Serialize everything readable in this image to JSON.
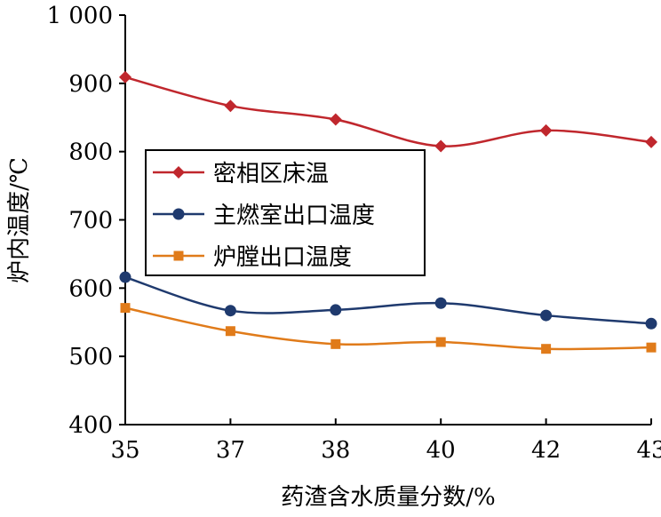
{
  "chart_data": {
    "type": "line",
    "title": "",
    "xlabel": "药渣含水质量分数/%",
    "ylabel": "炉内温度/℃",
    "categories": [
      "35",
      "37",
      "38",
      "40",
      "42",
      "43"
    ],
    "ylim": [
      400,
      1000
    ],
    "yticks": [
      400,
      500,
      600,
      700,
      800,
      900,
      1000
    ],
    "ytick_labels": [
      "400",
      "500",
      "600",
      "700",
      "800",
      "900",
      "1 000"
    ],
    "grid": false,
    "legend_position": "center-left",
    "series": [
      {
        "name": "密相区床温",
        "color": "#c0272d",
        "marker": "diamond",
        "values": [
          909,
          867,
          847,
          808,
          831,
          814
        ]
      },
      {
        "name": "主燃室出口温度",
        "color": "#1f3a6e",
        "marker": "circle",
        "values": [
          616,
          567,
          568,
          578,
          560,
          548
        ]
      },
      {
        "name": "炉膛出口温度",
        "color": "#e07b1a",
        "marker": "square",
        "values": [
          571,
          537,
          518,
          521,
          511,
          513
        ]
      }
    ]
  }
}
